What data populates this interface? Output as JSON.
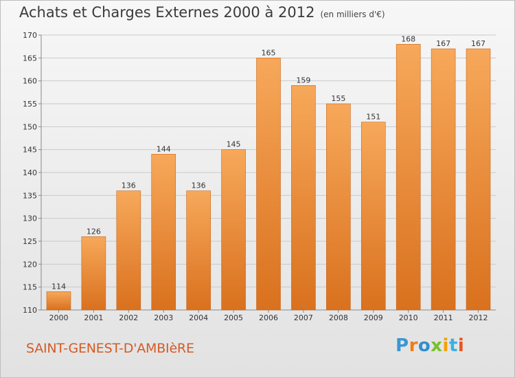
{
  "header": {
    "title": "Achats et Charges Externes 2000 à 2012",
    "unit": "(en milliers d'€)"
  },
  "footer": {
    "municipality": "SAINT-GENEST-D'AMBIèRE",
    "logo_letters": [
      "P",
      "r",
      "o",
      "x",
      "i",
      "t",
      "i"
    ]
  },
  "colors": {
    "bar_top": "#f7a85a",
    "bar_bottom": "#d9711e",
    "bar_edge": "#c8661c",
    "grid": "#c9c9c9",
    "axis_text": "#333333",
    "municipality": "#d35b25"
  },
  "chart_data": {
    "type": "bar",
    "title": "Achats et Charges Externes 2000 à 2012",
    "subtitle": "(en milliers d'€)",
    "xlabel": "",
    "ylabel": "",
    "categories": [
      "2000",
      "2001",
      "2002",
      "2003",
      "2004",
      "2005",
      "2006",
      "2007",
      "2008",
      "2009",
      "2010",
      "2011",
      "2012"
    ],
    "values": [
      114,
      126,
      136,
      144,
      136,
      145,
      165,
      159,
      155,
      151,
      168,
      167,
      167
    ],
    "ylim": [
      110,
      170
    ],
    "yticks": [
      110,
      115,
      120,
      125,
      130,
      135,
      140,
      145,
      150,
      155,
      160,
      165,
      170
    ],
    "grid": true,
    "data_labels": true
  }
}
